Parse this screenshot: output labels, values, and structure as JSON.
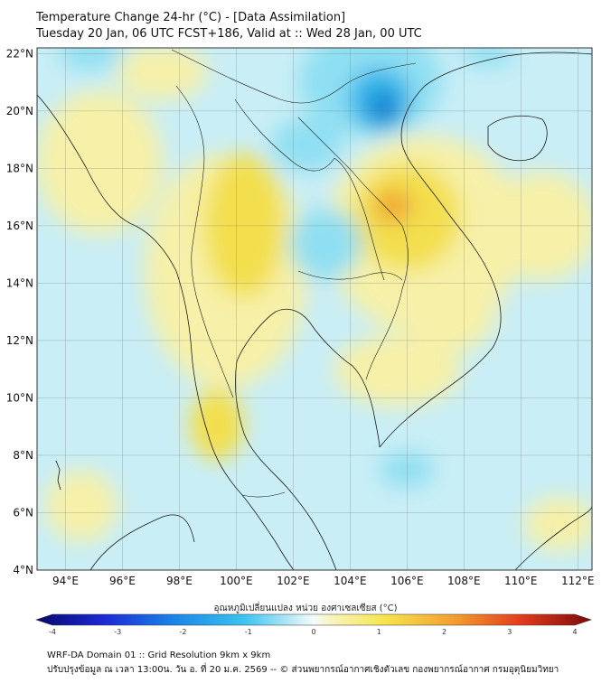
{
  "title": {
    "line1": "Temperature Change 24-hr (°C) - [Data Assimilation]",
    "line2": "Tuesday 20 Jan, 06 UTC FCST+186, Valid at :: Wed 28 Jan, 00 UTC"
  },
  "map": {
    "lon_range": [
      93,
      112.5
    ],
    "lat_range": [
      4,
      22.2
    ],
    "lon_ticks": [
      "94°E",
      "96°E",
      "98°E",
      "100°E",
      "102°E",
      "104°E",
      "106°E",
      "108°E",
      "110°E",
      "112°E"
    ],
    "lat_ticks": [
      "22°N",
      "20°N",
      "18°N",
      "16°N",
      "14°N",
      "12°N",
      "10°N",
      "8°N",
      "6°N",
      "4°N"
    ],
    "grid": true,
    "field_colors": {
      "background": "#c9eef6",
      "warm_light": "#f6f0a8",
      "warm": "#f3df4e",
      "hot": "#f0a534",
      "cool": "#8fdff2",
      "cold": "#33b4ea",
      "colder": "#0f7ccc"
    }
  },
  "colorbar": {
    "title": "อุณหภูมิเปลี่ยนแปลง หน่วย องศาเซลเซียส (°C)",
    "ticks": [
      "-4",
      "-3",
      "-2",
      "-1",
      "0",
      "1",
      "2",
      "3",
      "4"
    ],
    "range": [
      -4,
      4
    ]
  },
  "footer": {
    "line1": "WRF-DA Domain 01 :: Grid Resolution 9km x 9km",
    "line2": "ปรับปรุงข้อมูล ณ เวลา 13:00น. วัน อ. ที่ 20 ม.ค. 2569 -- © ส่วนพยากรณ์อากาศเชิงตัวเลข กองพยากรณ์อากาศ กรมอุตุนิยมวิทยา"
  }
}
